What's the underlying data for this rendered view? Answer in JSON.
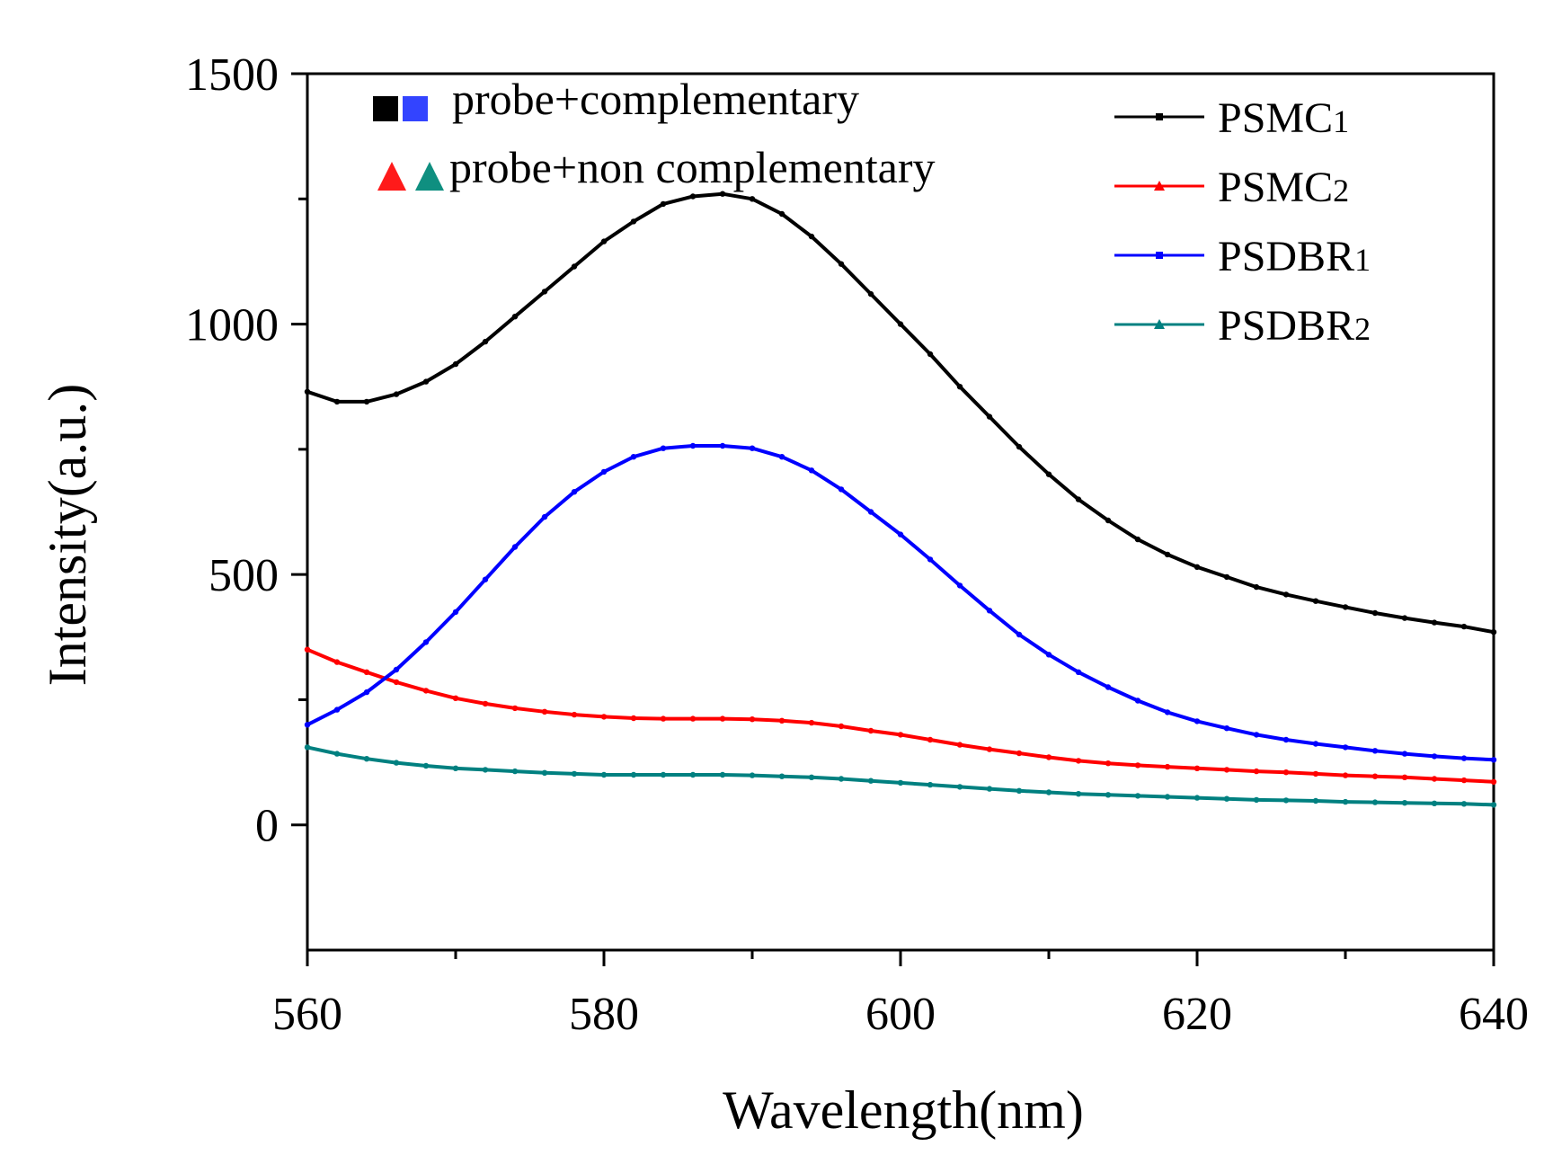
{
  "chart_data": {
    "type": "line",
    "title": "",
    "xlabel": "Wavelength(nm)",
    "ylabel": "Intensity(a.u.)",
    "xlim": [
      560,
      640
    ],
    "ylim": [
      -250,
      1500
    ],
    "xticks": [
      560,
      580,
      600,
      620,
      640
    ],
    "yticks": [
      0,
      500,
      1000,
      1500
    ],
    "xtick_labels": [
      "560",
      "580",
      "600",
      "620",
      "640"
    ],
    "ytick_labels": [
      "0",
      "500",
      "1000",
      "1500"
    ],
    "grid": false,
    "legend_position": "top-right",
    "series": [
      {
        "name": "PSMC1",
        "name_base": "PSMC",
        "name_sub": "1",
        "color": "#000000",
        "marker": "square",
        "x": [
          560,
          562,
          564,
          566,
          568,
          570,
          572,
          574,
          576,
          578,
          580,
          582,
          584,
          586,
          588,
          590,
          592,
          594,
          596,
          598,
          600,
          602,
          604,
          606,
          608,
          610,
          612,
          614,
          616,
          618,
          620,
          622,
          624,
          626,
          628,
          630,
          632,
          634,
          636,
          638,
          640
        ],
        "y": [
          865,
          845,
          845,
          860,
          885,
          920,
          965,
          1015,
          1065,
          1115,
          1165,
          1205,
          1240,
          1255,
          1260,
          1250,
          1220,
          1175,
          1120,
          1060,
          1000,
          940,
          875,
          815,
          755,
          700,
          650,
          608,
          570,
          540,
          515,
          495,
          475,
          460,
          447,
          435,
          423,
          413,
          404,
          396,
          385
        ]
      },
      {
        "name": "PSMC2",
        "name_base": "PSMC",
        "name_sub": "2",
        "color": "#ff0000",
        "marker": "triangle",
        "x": [
          560,
          562,
          564,
          566,
          568,
          570,
          572,
          574,
          576,
          578,
          580,
          582,
          584,
          586,
          588,
          590,
          592,
          594,
          596,
          598,
          600,
          602,
          604,
          606,
          608,
          610,
          612,
          614,
          616,
          618,
          620,
          622,
          624,
          626,
          628,
          630,
          632,
          634,
          636,
          638,
          640
        ],
        "y": [
          350,
          325,
          305,
          285,
          268,
          253,
          242,
          233,
          226,
          220,
          216,
          213,
          212,
          212,
          212,
          211,
          208,
          204,
          197,
          188,
          180,
          170,
          160,
          151,
          143,
          135,
          128,
          123,
          119,
          116,
          113,
          110,
          107,
          105,
          102,
          99,
          97,
          95,
          92,
          89,
          86
        ]
      },
      {
        "name": "PSDBR1",
        "name_base": "PSDBR",
        "name_sub": "1",
        "color": "#0000ff",
        "marker": "circle",
        "x": [
          560,
          562,
          564,
          566,
          568,
          570,
          572,
          574,
          576,
          578,
          580,
          582,
          584,
          586,
          588,
          590,
          592,
          594,
          596,
          598,
          600,
          602,
          604,
          606,
          608,
          610,
          612,
          614,
          616,
          618,
          620,
          622,
          624,
          626,
          628,
          630,
          632,
          634,
          636,
          638,
          640
        ],
        "y": [
          200,
          230,
          265,
          310,
          365,
          425,
          490,
          555,
          615,
          665,
          705,
          735,
          752,
          757,
          757,
          752,
          735,
          708,
          670,
          625,
          580,
          530,
          478,
          428,
          380,
          340,
          305,
          275,
          248,
          225,
          207,
          193,
          180,
          170,
          162,
          155,
          148,
          142,
          137,
          133,
          130
        ]
      },
      {
        "name": "PSDBR2",
        "name_base": "PSDBR",
        "name_sub": "2",
        "color": "#008080",
        "marker": "triangle",
        "x": [
          560,
          562,
          564,
          566,
          568,
          570,
          572,
          574,
          576,
          578,
          580,
          582,
          584,
          586,
          588,
          590,
          592,
          594,
          596,
          598,
          600,
          602,
          604,
          606,
          608,
          610,
          612,
          614,
          616,
          618,
          620,
          622,
          624,
          626,
          628,
          630,
          632,
          634,
          636,
          638,
          640
        ],
        "y": [
          155,
          142,
          132,
          124,
          118,
          113,
          110,
          107,
          104,
          102,
          100,
          100,
          100,
          100,
          100,
          99,
          97,
          95,
          92,
          88,
          84,
          80,
          76,
          72,
          68,
          65,
          62,
          60,
          58,
          56,
          54,
          52,
          50,
          49,
          48,
          46,
          45,
          44,
          43,
          42,
          40
        ]
      }
    ],
    "annotations": [
      {
        "text": "probe+complementary",
        "marker_colors": [
          "#000000",
          "#3344ff"
        ],
        "marker_shape": "square"
      },
      {
        "text": "probe+non complementary",
        "marker_colors": [
          "#ff1a1a",
          "#0f8f80"
        ],
        "marker_shape": "triangle"
      }
    ]
  }
}
